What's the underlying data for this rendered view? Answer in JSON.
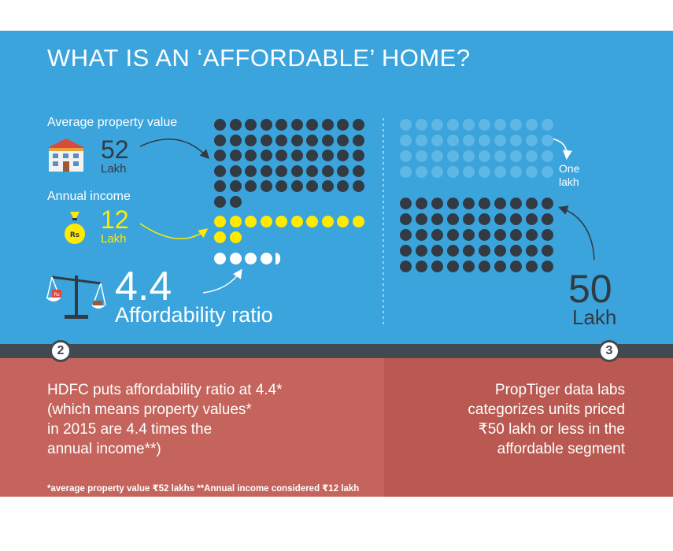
{
  "title": "WHAT IS AN ‘AFFORDABLE’ HOME?",
  "property": {
    "label": "Average property value",
    "value": "52",
    "unit": "Lakh",
    "icon": "house-icon"
  },
  "income": {
    "label": "Annual income",
    "value": "12",
    "unit": "Lakh",
    "icon": "money-bag-icon"
  },
  "ratio": {
    "value": "4.4",
    "label": "Affordability ratio",
    "icon": "balance-scale-icon"
  },
  "right_chart": {
    "top_label_line1": "One",
    "top_label_line2": "lakh",
    "value": "50",
    "unit": "Lakh"
  },
  "dot_counts": {
    "property": 52,
    "income": 12,
    "ratio": 4.4,
    "affordable_limit": 50,
    "faded_top": 40
  },
  "steps": {
    "left_number": "2",
    "right_number": "3"
  },
  "left_panel": {
    "lines": [
      "HDFC puts affordability ratio at 4.4*",
      "(which means property values*",
      "in 2015 are 4.4 times the",
      "annual income**)"
    ],
    "footnote": "*average property value ₹52 lakhs  **Annual income considered ₹12 lakh"
  },
  "right_panel": {
    "lines": [
      "PropTiger data labs",
      "categorizes units priced",
      "₹50 lakh or less in the",
      "affordable segment"
    ]
  },
  "colors": {
    "background": "#3ba4dc",
    "dark_dot": "#323a43",
    "yellow": "#ffea00",
    "white": "#ffffff",
    "faded_dot": "#5fb7e6",
    "bar": "#414a50",
    "panel_left": "#c4645c",
    "panel_right": "#b95952"
  }
}
